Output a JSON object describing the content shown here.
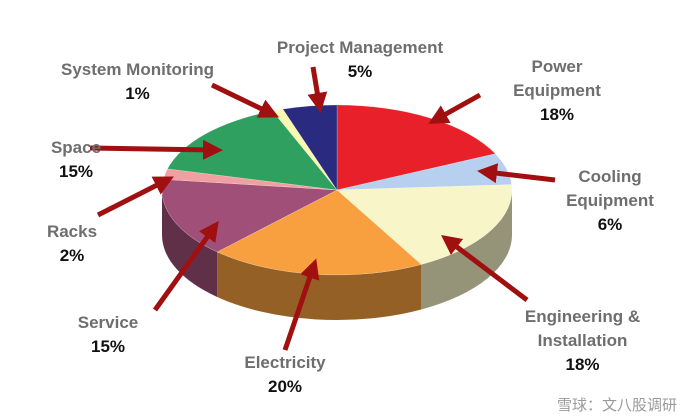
{
  "chart_data": {
    "type": "pie",
    "categories": [
      "Power Equipment",
      "Cooling Equipment",
      "Engineering & Installation",
      "Electricity",
      "Service",
      "Racks",
      "Space",
      "System Monitoring",
      "Project Management"
    ],
    "values": [
      18,
      6,
      18,
      20,
      15,
      2,
      15,
      1,
      5
    ],
    "value_labels": [
      "18%",
      "6%",
      "18%",
      "20%",
      "15%",
      "2%",
      "15%",
      "1%",
      "5%"
    ],
    "colors": [
      "#e8202a",
      "#b8d0f0",
      "#f8f5c8",
      "#f8a040",
      "#a05078",
      "#f0a0a0",
      "#30a060",
      "#f8f8b0",
      "#2a2a80"
    ]
  },
  "watermark": "雪球：文八股调研"
}
